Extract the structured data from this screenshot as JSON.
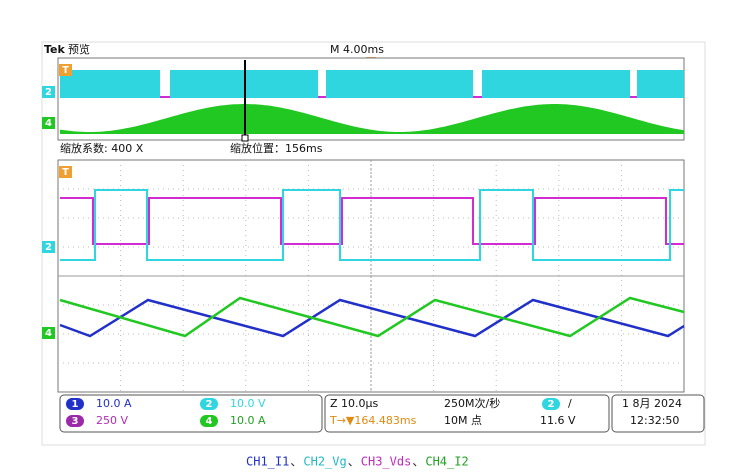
{
  "header": {
    "brand": "Tek",
    "mode": "预览",
    "timebase": "M 4.00ms"
  },
  "zoom": {
    "factor": "缩放系数: 400 X",
    "position": "缩放位置：156ms"
  },
  "overview_markers": [
    "T",
    "2",
    "4"
  ],
  "zoom_markers": [
    "T",
    "2",
    "4"
  ],
  "channels": [
    {
      "number": "1",
      "scale": "10.0 A"
    },
    {
      "number": "2",
      "scale": "10.0 V"
    },
    {
      "number": "3",
      "scale": "250 V"
    },
    {
      "number": "4",
      "scale": "10.0 A"
    }
  ],
  "horizontal": {
    "zoom_scale": "Z 10.0μs",
    "sample_rate": "250M次/秒",
    "position": "T→▼164.483ms",
    "record_length": "10M 点"
  },
  "trigger": {
    "source": "2",
    "slope": "/",
    "level": "11.6 V"
  },
  "datetime": {
    "date": "1 8月 2024",
    "time": "12:32:50"
  },
  "caption": [
    "CH1_I1",
    "、",
    "CH2_Vg",
    "、",
    "CH3_Vds",
    "、",
    "CH4_I2"
  ]
}
